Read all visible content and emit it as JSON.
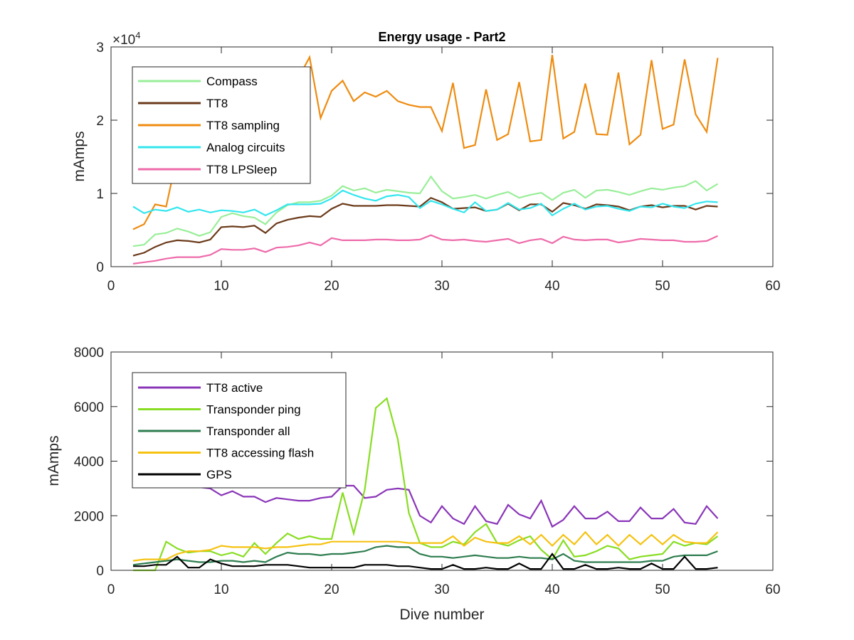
{
  "chart_data": [
    {
      "type": "line",
      "title": "Energy usage - Part2",
      "xlabel": "",
      "ylabel": "mAmps",
      "y_exponent_base": "×10",
      "y_exponent_power": "4",
      "xlim": [
        0,
        60
      ],
      "ylim": [
        0,
        30000
      ],
      "xticks": [
        0,
        10,
        20,
        30,
        40,
        50,
        60
      ],
      "xtick_labels": [
        "0",
        "10",
        "20",
        "30",
        "40",
        "50",
        "60"
      ],
      "yticks": [
        0,
        10000,
        20000,
        30000
      ],
      "ytick_labels": [
        "0",
        "1",
        "2",
        "3"
      ],
      "legend_position": "top-left",
      "x": [
        2,
        3,
        4,
        5,
        6,
        7,
        8,
        9,
        10,
        11,
        12,
        13,
        14,
        15,
        16,
        17,
        18,
        19,
        20,
        21,
        22,
        23,
        24,
        25,
        26,
        27,
        28,
        29,
        30,
        31,
        32,
        33,
        34,
        35,
        36,
        37,
        38,
        39,
        40,
        41,
        42,
        43,
        44,
        45,
        46,
        47,
        48,
        49,
        50,
        51,
        52,
        53,
        54,
        55
      ],
      "series": [
        {
          "name": "Compass",
          "color": "#99ee99",
          "values": [
            2800,
            3000,
            4400,
            4600,
            5200,
            4800,
            4200,
            4700,
            6800,
            7300,
            6900,
            6700,
            5800,
            7400,
            8400,
            8800,
            8800,
            9000,
            9700,
            11000,
            10400,
            10700,
            10100,
            10500,
            10300,
            10100,
            10000,
            12300,
            10300,
            9300,
            9500,
            9800,
            9300,
            9800,
            10200,
            9400,
            9800,
            10100,
            9100,
            10100,
            10500,
            9400,
            10400,
            10500,
            10200,
            9800,
            10300,
            10700,
            10500,
            10800,
            11000,
            11700,
            10400,
            11300
          ]
        },
        {
          "name": "TT8",
          "color": "#6b3a1a",
          "values": [
            1500,
            1900,
            2700,
            3300,
            3600,
            3500,
            3300,
            3700,
            5400,
            5500,
            5400,
            5600,
            4600,
            5900,
            6400,
            6700,
            6900,
            6800,
            7900,
            8600,
            8300,
            8300,
            8300,
            8400,
            8400,
            8300,
            8200,
            9400,
            8800,
            7900,
            8000,
            8100,
            7600,
            7800,
            8600,
            7700,
            8500,
            8500,
            7500,
            8700,
            8400,
            7900,
            8500,
            8400,
            8200,
            7700,
            8200,
            8400,
            8100,
            8300,
            8300,
            7800,
            8300,
            8200
          ]
        },
        {
          "name": "TT8 sampling",
          "color": "#ee8c11",
          "values": [
            5100,
            5800,
            8500,
            8200,
            15200,
            18500,
            19500,
            20200,
            21300,
            21800,
            22000,
            22400,
            22700,
            23500,
            24800,
            25800,
            28600,
            20300,
            24000,
            25400,
            22600,
            23800,
            23200,
            24000,
            22600,
            22100,
            21800,
            21800,
            18500,
            25100,
            16200,
            16600,
            24200,
            17300,
            18100,
            25200,
            17100,
            17300,
            28900,
            17500,
            18400,
            25000,
            18100,
            18000,
            26500,
            16700,
            18000,
            28200,
            18800,
            19400,
            28300,
            20800,
            18400,
            28500
          ]
        },
        {
          "name": "Analog circuits",
          "color": "#33e6ee",
          "values": [
            8200,
            7300,
            7800,
            7600,
            8100,
            7500,
            7800,
            7400,
            7700,
            7600,
            7400,
            7800,
            7000,
            7700,
            8500,
            8500,
            8500,
            8600,
            9300,
            10400,
            9800,
            9300,
            9000,
            9600,
            9800,
            9500,
            8000,
            9000,
            8500,
            7900,
            7400,
            8800,
            7600,
            7800,
            8700,
            7800,
            8000,
            8600,
            7000,
            7900,
            8600,
            7800,
            8200,
            8300,
            7900,
            7600,
            8200,
            8100,
            8600,
            8200,
            8000,
            8600,
            8900,
            8800
          ]
        },
        {
          "name": "TT8 LPSleep",
          "color": "#ee6baa",
          "values": [
            400,
            600,
            800,
            1100,
            1300,
            1300,
            1300,
            1600,
            2400,
            2300,
            2300,
            2500,
            2000,
            2600,
            2700,
            2900,
            3300,
            2900,
            3900,
            3600,
            3600,
            3600,
            3700,
            3700,
            3600,
            3600,
            3700,
            4300,
            3700,
            3600,
            3700,
            3500,
            3400,
            3600,
            3800,
            3200,
            3600,
            3800,
            3200,
            4100,
            3700,
            3600,
            3700,
            3700,
            3300,
            3500,
            3800,
            3700,
            3600,
            3600,
            3400,
            3400,
            3500,
            4200
          ]
        }
      ]
    },
    {
      "type": "line",
      "title": "",
      "xlabel": "Dive number",
      "ylabel": "mAmps",
      "xlim": [
        0,
        60
      ],
      "ylim": [
        0,
        8000
      ],
      "xticks": [
        0,
        10,
        20,
        30,
        40,
        50,
        60
      ],
      "xtick_labels": [
        "0",
        "10",
        "20",
        "30",
        "40",
        "50",
        "60"
      ],
      "yticks": [
        0,
        2000,
        4000,
        6000,
        8000
      ],
      "ytick_labels": [
        "0",
        "2000",
        "4000",
        "6000",
        "8000"
      ],
      "legend_position": "top-left",
      "x": [
        2,
        3,
        4,
        5,
        6,
        7,
        8,
        9,
        10,
        11,
        12,
        13,
        14,
        15,
        16,
        17,
        18,
        19,
        20,
        21,
        22,
        23,
        24,
        25,
        26,
        27,
        28,
        29,
        30,
        31,
        32,
        33,
        34,
        35,
        36,
        37,
        38,
        39,
        40,
        41,
        42,
        43,
        44,
        45,
        46,
        47,
        48,
        49,
        50,
        51,
        52,
        53,
        54,
        55
      ],
      "series": [
        {
          "name": "TT8 active",
          "color": "#8a35b8",
          "values": [
            3700,
            3500,
            3400,
            3300,
            3200,
            3100,
            3050,
            3000,
            2750,
            2900,
            2700,
            2700,
            2500,
            2650,
            2600,
            2550,
            2550,
            2650,
            2700,
            3100,
            3100,
            2650,
            2700,
            2950,
            3000,
            2950,
            2000,
            1750,
            2350,
            1900,
            1700,
            2350,
            1800,
            1700,
            2400,
            2050,
            1900,
            2550,
            1600,
            1850,
            2350,
            1900,
            1900,
            2150,
            1800,
            1800,
            2300,
            1900,
            1900,
            2250,
            1750,
            1700,
            2350,
            1900
          ]
        },
        {
          "name": "Transponder ping",
          "color": "#88dd22",
          "values": [
            0,
            0,
            0,
            1050,
            800,
            650,
            700,
            700,
            550,
            650,
            500,
            1000,
            600,
            1000,
            1350,
            1150,
            1250,
            1150,
            1150,
            2850,
            1350,
            2950,
            5950,
            6300,
            4800,
            2100,
            1000,
            850,
            850,
            1050,
            950,
            1400,
            1700,
            1000,
            900,
            1100,
            1250,
            750,
            400,
            1100,
            500,
            550,
            700,
            900,
            800,
            400,
            500,
            550,
            600,
            1050,
            900,
            1000,
            950,
            1250
          ]
        },
        {
          "name": "Transponder all",
          "color": "#2e7d4f",
          "values": [
            200,
            250,
            300,
            350,
            400,
            350,
            300,
            300,
            350,
            350,
            300,
            350,
            300,
            500,
            650,
            600,
            600,
            550,
            600,
            600,
            650,
            700,
            850,
            900,
            850,
            850,
            600,
            500,
            500,
            450,
            500,
            550,
            500,
            450,
            450,
            500,
            450,
            450,
            400,
            600,
            350,
            300,
            300,
            300,
            300,
            300,
            300,
            350,
            350,
            500,
            550,
            550,
            550,
            700
          ]
        },
        {
          "name": "TT8 accessing flash",
          "color": "#f5c211",
          "values": [
            350,
            400,
            400,
            400,
            600,
            700,
            700,
            750,
            900,
            850,
            850,
            850,
            800,
            850,
            850,
            900,
            950,
            950,
            1050,
            1050,
            1050,
            1050,
            1050,
            1050,
            1050,
            1000,
            1000,
            1000,
            1000,
            1250,
            900,
            1200,
            1050,
            1000,
            1000,
            1250,
            950,
            1300,
            900,
            1300,
            950,
            1400,
            950,
            1300,
            900,
            1300,
            950,
            1300,
            950,
            1300,
            1050,
            1000,
            1000,
            1400
          ]
        },
        {
          "name": "GPS",
          "color": "#000000",
          "values": [
            150,
            150,
            200,
            200,
            500,
            100,
            100,
            400,
            250,
            150,
            150,
            150,
            200,
            200,
            200,
            150,
            100,
            100,
            100,
            100,
            100,
            200,
            200,
            200,
            150,
            150,
            100,
            50,
            50,
            200,
            50,
            50,
            100,
            50,
            50,
            250,
            50,
            50,
            600,
            50,
            50,
            200,
            50,
            50,
            100,
            50,
            50,
            250,
            50,
            50,
            500,
            50,
            50,
            100
          ]
        }
      ]
    }
  ]
}
